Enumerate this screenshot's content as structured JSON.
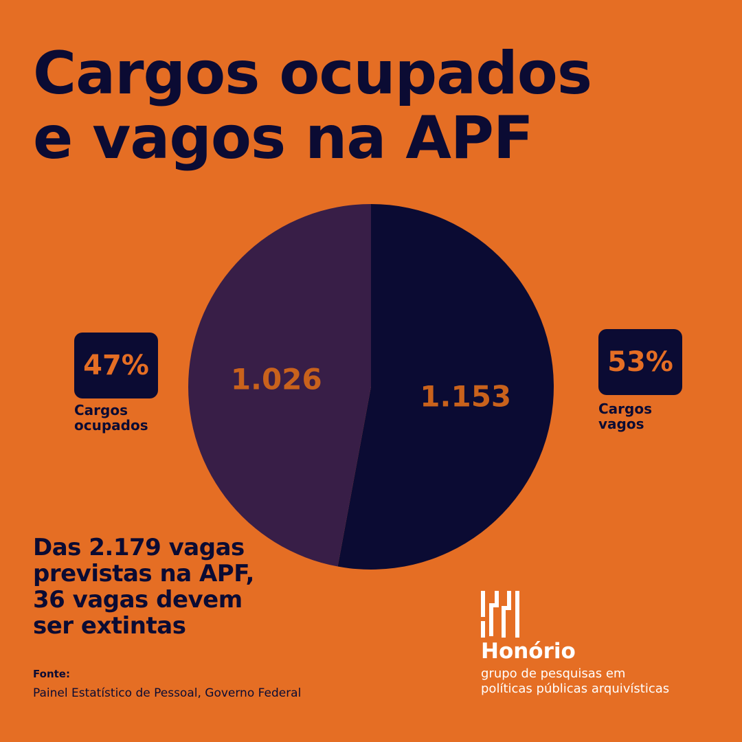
{
  "title": {
    "line1": "Cargos ocupados",
    "line2": "e vagos na APF"
  },
  "colors": {
    "background": "#e56e24",
    "dark_navy": "#0b0b33",
    "purple": "#381e47",
    "accent_orange": "#c9621c"
  },
  "chart_data": {
    "type": "pie",
    "slices": [
      {
        "value": 1153,
        "value_label": "1.153",
        "percent_label": "53%",
        "label_line1": "Cargos",
        "label_line2": "vagos",
        "color": "#0b0b33"
      },
      {
        "value": 1026,
        "value_label": "1.026",
        "percent_label": "47%",
        "label_line1": "Cargos",
        "label_line2": "ocupados",
        "color": "#381e47"
      }
    ]
  },
  "summary": {
    "line1_prefix": "Das ",
    "line1_bold": "2.179",
    "line1_suffix": " vagas",
    "line2": "previstas na APF,",
    "line3": "36 vagas devem",
    "line4": "ser extintas"
  },
  "source": {
    "label": "Fonte:",
    "text": "Painel Estatístico de Pessoal, Governo Federal"
  },
  "brand": {
    "logo_icon": "honorio-h-logo-icon",
    "name": "Honório",
    "desc_line1": "grupo de pesquisas em",
    "desc_line2": "políticas públicas arquivísticas"
  }
}
